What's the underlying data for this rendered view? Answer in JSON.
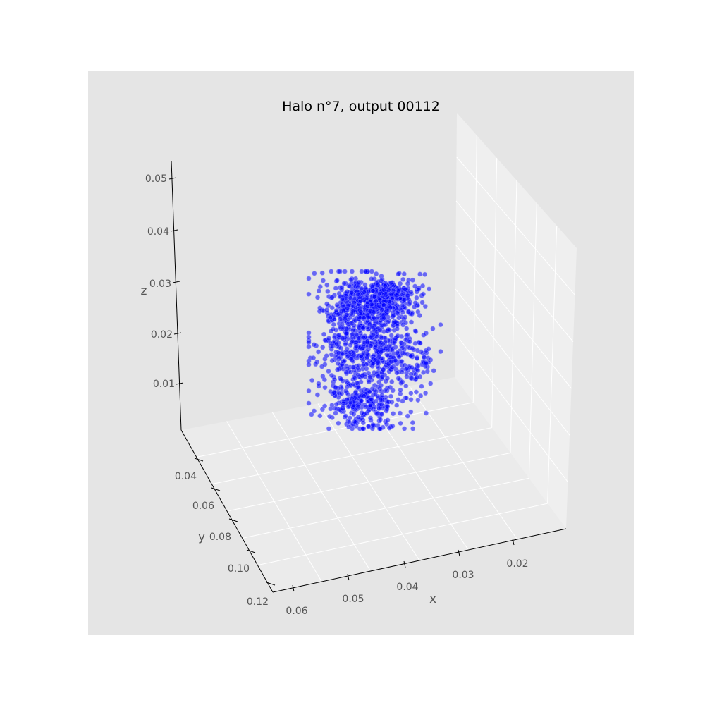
{
  "chart_data": {
    "type": "scatter",
    "projection": "3d",
    "title": "Halo n°7, output 00112",
    "xlabel": "x",
    "ylabel": "y",
    "zlabel": "z",
    "x_ticks": [
      "0.06",
      "0.05",
      "0.04",
      "0.03",
      "0.02"
    ],
    "y_ticks": [
      "0.04",
      "0.06",
      "0.08",
      "0.10",
      "0.12"
    ],
    "z_ticks": [
      "0.05",
      "0.04",
      "0.03",
      "0.02",
      "0.01"
    ],
    "xlim": [
      0.011,
      0.065
    ],
    "ylim": [
      0.03,
      0.125
    ],
    "zlim": [
      0.0,
      0.053
    ],
    "grid": true,
    "series": [
      {
        "marker_color": "#0000ff",
        "marker_opacity": 0.55,
        "approx_point_count": 1500,
        "cluster_centers": [
          {
            "x": 0.036,
            "y": 0.062,
            "z": 0.023
          },
          {
            "x": 0.034,
            "y": 0.06,
            "z": 0.029
          },
          {
            "x": 0.037,
            "y": 0.064,
            "z": 0.013
          }
        ]
      }
    ]
  },
  "colors": {
    "figure_background": "#ffffff",
    "axes_background": "#e5e5e5",
    "pane_floor": "#ebebeb",
    "pane_wall": "#f0f0f0",
    "grid": "#ffffff",
    "axis_line": "#000000",
    "point": "#0000ff"
  }
}
